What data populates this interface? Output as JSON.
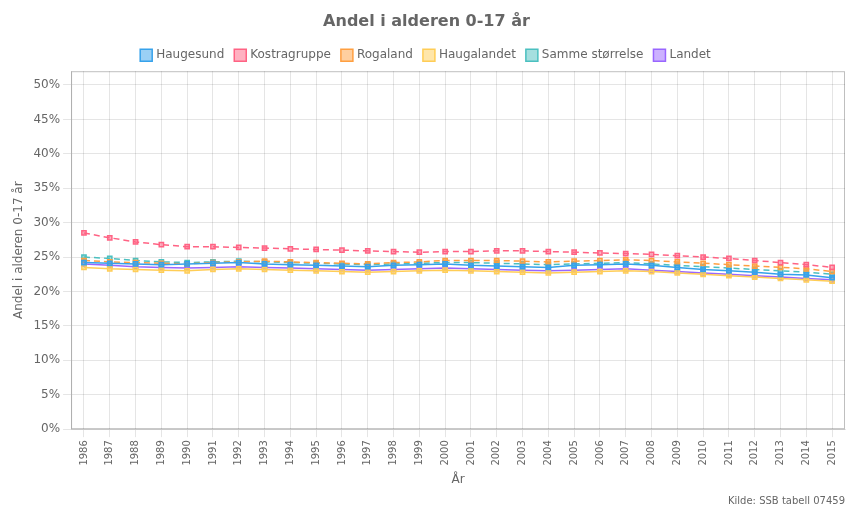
{
  "chart_data": {
    "type": "line",
    "title": "Andel i alderen 0-17 år",
    "xlabel": "År",
    "ylabel": "Andel i alderen 0-17 år",
    "annotation": "Kilde: SSB tabell 07459",
    "x": [
      1986,
      1987,
      1988,
      1989,
      1990,
      1991,
      1992,
      1993,
      1994,
      1995,
      1996,
      1997,
      1998,
      1999,
      2000,
      2001,
      2002,
      2003,
      2004,
      2005,
      2006,
      2007,
      2008,
      2009,
      2010,
      2011,
      2012,
      2013,
      2014,
      2015
    ],
    "series": [
      {
        "name": "Haugesund",
        "line_style": "solid",
        "marker": "square",
        "values": [
          24.2,
          24.1,
          24.0,
          23.9,
          24.0,
          24.1,
          24.2,
          24.0,
          23.9,
          23.8,
          23.7,
          23.6,
          23.8,
          23.9,
          24.0,
          23.8,
          23.7,
          23.6,
          23.5,
          23.8,
          23.9,
          24.0,
          23.8,
          23.5,
          23.2,
          23.0,
          22.8,
          22.5,
          22.4,
          22.0
        ]
      },
      {
        "name": "Kostragruppe",
        "line_style": "dashed",
        "marker": "square",
        "values": [
          28.5,
          27.8,
          27.2,
          26.8,
          26.5,
          26.5,
          26.4,
          26.3,
          26.2,
          26.1,
          26.0,
          25.9,
          25.8,
          25.7,
          25.8,
          25.8,
          25.9,
          25.9,
          25.8,
          25.7,
          25.6,
          25.5,
          25.4,
          25.2,
          25.0,
          24.8,
          24.5,
          24.2,
          23.9,
          23.5
        ]
      },
      {
        "name": "Rogaland",
        "line_style": "dashed",
        "marker": "square",
        "values": [
          24.5,
          24.3,
          24.2,
          24.1,
          24.0,
          24.2,
          24.3,
          24.4,
          24.3,
          24.2,
          24.1,
          24.0,
          24.2,
          24.3,
          24.5,
          24.5,
          24.5,
          24.4,
          24.3,
          24.4,
          24.5,
          24.6,
          24.5,
          24.3,
          24.1,
          23.9,
          23.7,
          23.5,
          23.3,
          22.9
        ]
      },
      {
        "name": "Haugalandet",
        "line_style": "solid",
        "marker": "square",
        "values": [
          23.5,
          23.3,
          23.2,
          23.1,
          23.0,
          23.2,
          23.3,
          23.2,
          23.1,
          23.0,
          22.9,
          22.8,
          22.9,
          23.0,
          23.1,
          23.0,
          22.9,
          22.8,
          22.7,
          22.8,
          22.9,
          23.0,
          22.9,
          22.7,
          22.5,
          22.3,
          22.1,
          21.9,
          21.7,
          21.5
        ]
      },
      {
        "name": "Samme størrelse",
        "line_style": "dashed",
        "marker": "square",
        "values": [
          25.0,
          24.8,
          24.5,
          24.3,
          24.2,
          24.3,
          24.4,
          24.3,
          24.2,
          24.1,
          24.0,
          23.9,
          24.0,
          24.1,
          24.2,
          24.2,
          24.1,
          24.0,
          23.9,
          24.0,
          24.1,
          24.2,
          24.0,
          23.8,
          23.6,
          23.4,
          23.2,
          23.0,
          22.8,
          22.5
        ]
      },
      {
        "name": "Landet",
        "line_style": "solid",
        "marker": "square",
        "values": [
          24.0,
          23.8,
          23.6,
          23.5,
          23.4,
          23.5,
          23.6,
          23.5,
          23.4,
          23.3,
          23.2,
          23.1,
          23.2,
          23.3,
          23.4,
          23.3,
          23.2,
          23.1,
          23.0,
          23.1,
          23.2,
          23.3,
          23.1,
          22.9,
          22.7,
          22.5,
          22.3,
          22.1,
          21.9,
          21.7
        ]
      }
    ],
    "xlim": [
      1985.5,
      2015.5
    ],
    "xticks": [
      1986,
      1987,
      1988,
      1989,
      1990,
      1991,
      1992,
      1993,
      1994,
      1995,
      1996,
      1997,
      1998,
      1999,
      2000,
      2001,
      2002,
      2003,
      2004,
      2005,
      2006,
      2007,
      2008,
      2009,
      2010,
      2011,
      2012,
      2013,
      2014,
      2015
    ],
    "ylim": [
      0,
      52
    ],
    "yticks": [
      {
        "value": 0,
        "label": "0%"
      },
      {
        "value": 5,
        "label": "5%"
      },
      {
        "value": 10,
        "label": "10%"
      },
      {
        "value": 15,
        "label": "15%"
      },
      {
        "value": 20,
        "label": "20%"
      },
      {
        "value": 25,
        "label": "25%"
      },
      {
        "value": 30,
        "label": "30%"
      },
      {
        "value": 35,
        "label": "35%"
      },
      {
        "value": 40,
        "label": "40%"
      },
      {
        "value": 45,
        "label": "45%"
      },
      {
        "value": 50,
        "label": "50%"
      }
    ],
    "grid": true,
    "legend": "top"
  }
}
